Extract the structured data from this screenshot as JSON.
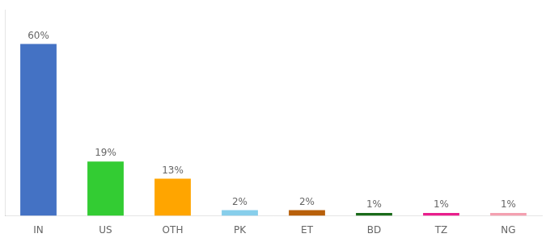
{
  "chart_data": {
    "type": "bar",
    "categories": [
      "IN",
      "US",
      "OTH",
      "PK",
      "ET",
      "BD",
      "TZ",
      "NG"
    ],
    "values": [
      60,
      19,
      13,
      2,
      2,
      1,
      1,
      1
    ],
    "value_labels": [
      "60%",
      "19%",
      "13%",
      "2%",
      "2%",
      "1%",
      "1%",
      "1%"
    ],
    "colors": [
      "#4472c4",
      "#33cc33",
      "#ffa500",
      "#87ceeb",
      "#b8600a",
      "#1a6b1a",
      "#e91e8c",
      "#f4a0b0"
    ],
    "ylim": [
      0,
      72
    ],
    "data_labels": true,
    "tick_labels": "x",
    "grid": false
  }
}
